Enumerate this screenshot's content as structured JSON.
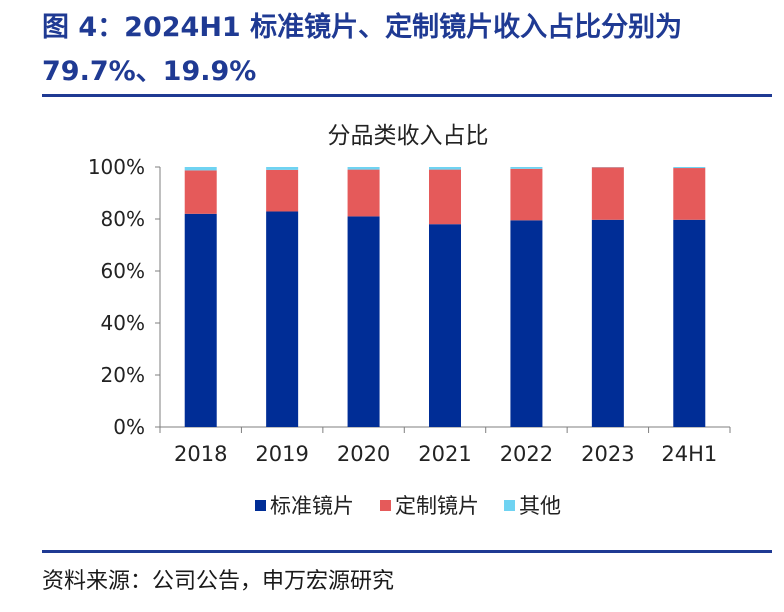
{
  "figure": {
    "title": "图 4：2024H1 标准镜片、定制镜片收入占比分别为79.7%、19.9%",
    "source": "资料来源：公司公告，申万宏源研究"
  },
  "chart_data": {
    "type": "bar",
    "stacked": true,
    "title": "分品类收入占比",
    "xlabel": "",
    "ylabel": "",
    "categories": [
      "2018",
      "2019",
      "2020",
      "2021",
      "2022",
      "2023",
      "24H1"
    ],
    "series": [
      {
        "name": "标准镜片",
        "color": "#002d96",
        "values": [
          82.0,
          82.9,
          81.0,
          78.0,
          79.5,
          79.7,
          79.7
        ]
      },
      {
        "name": "定制镜片",
        "color": "#e55a5a",
        "values": [
          16.7,
          16.0,
          18.0,
          21.0,
          19.8,
          20.2,
          19.9
        ]
      },
      {
        "name": "其他",
        "color": "#6fd3f2",
        "values": [
          1.3,
          1.1,
          1.0,
          1.0,
          0.7,
          0.1,
          0.4
        ]
      }
    ],
    "ylim": [
      0,
      100
    ],
    "yticks": [
      "0%",
      "20%",
      "40%",
      "60%",
      "80%",
      "100%"
    ],
    "grid": false,
    "legend": "bottom"
  }
}
